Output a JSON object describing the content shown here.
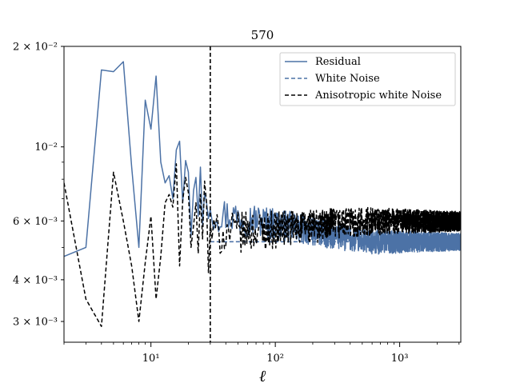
{
  "chart_data": {
    "type": "line",
    "title": "570",
    "xlabel": "ℓ",
    "ylabel": "",
    "xscale": "log",
    "yscale": "log",
    "xlim": [
      2,
      3100
    ],
    "ylim": [
      0.0026,
      0.02
    ],
    "grid": false,
    "legend_position": "top-right",
    "x_major_ticks": [
      {
        "value": 10,
        "label": "10¹"
      },
      {
        "value": 100,
        "label": "10²"
      },
      {
        "value": 1000,
        "label": "10³"
      }
    ],
    "y_tick_labels": [
      {
        "value": 0.02,
        "label": "2 × 10⁻²"
      },
      {
        "value": 0.01,
        "label": "10⁻²"
      },
      {
        "value": 0.006,
        "label": "6 × 10⁻³"
      },
      {
        "value": 0.004,
        "label": "4 × 10⁻³"
      },
      {
        "value": 0.003,
        "label": "3 × 10⁻³"
      }
    ],
    "vline": {
      "x": 30,
      "color": "#000000",
      "style": "dashed"
    },
    "series": [
      {
        "name": "Residual",
        "color": "#4c72a6",
        "style": "solid",
        "x": [
          2,
          3,
          4,
          5,
          6,
          7,
          8,
          9,
          10,
          11,
          12,
          13,
          14,
          15,
          16,
          17,
          18,
          19,
          20,
          21,
          22,
          23,
          24,
          25,
          26,
          27,
          28,
          29,
          30
        ],
        "y": [
          0.0047,
          0.005,
          0.017,
          0.0168,
          0.018,
          0.0087,
          0.005,
          0.0138,
          0.0113,
          0.0163,
          0.009,
          0.0078,
          0.0082,
          0.007,
          0.0098,
          0.0104,
          0.0068,
          0.0091,
          0.0084,
          0.0054,
          0.0074,
          0.0081,
          0.0062,
          0.0087,
          0.0058,
          0.0073,
          0.0068,
          0.0061,
          0.0065
        ],
        "tail": {
          "from_x": 30,
          "to_x": 3100,
          "start_level": 0.0064,
          "end_level": 0.0052,
          "spread": 0.13
        }
      },
      {
        "name": "White Noise",
        "color": "#4c72a6",
        "style": "dashed",
        "x": [
          30,
          3100
        ],
        "y": [
          0.0052,
          0.0052
        ],
        "tail": null
      },
      {
        "name": "Anisotropic white Noise",
        "color": "#000000",
        "style": "dashed",
        "x": [
          2,
          3,
          4,
          5,
          6,
          7,
          8,
          9,
          10,
          11,
          12,
          13,
          14,
          15,
          16,
          17,
          18,
          19,
          20,
          21,
          22,
          23,
          24,
          25,
          26,
          27,
          28,
          29,
          30
        ],
        "y": [
          0.0078,
          0.0035,
          0.0029,
          0.0084,
          0.006,
          0.0044,
          0.003,
          0.0045,
          0.0062,
          0.0035,
          0.0047,
          0.0068,
          0.0072,
          0.0066,
          0.0089,
          0.0044,
          0.0069,
          0.0081,
          0.0073,
          0.005,
          0.0058,
          0.0068,
          0.0048,
          0.0072,
          0.0053,
          0.0079,
          0.0068,
          0.0042,
          0.0059
        ],
        "tail": {
          "from_x": 30,
          "to_x": 3100,
          "start_level": 0.0055,
          "end_level": 0.006,
          "spread": 0.15
        }
      }
    ]
  }
}
